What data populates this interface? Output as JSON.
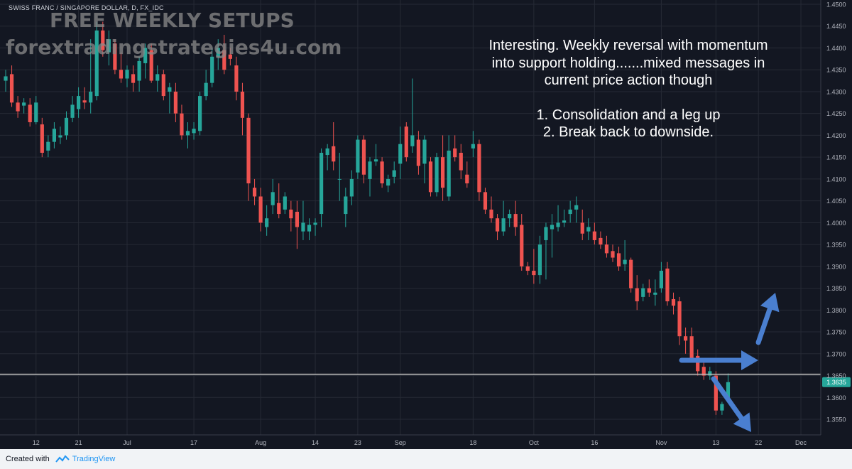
{
  "symbol_label": "SWISS FRANC / SINGAPORE DOLLAR, D, FX_IDC",
  "watermark": {
    "line1": "FREE WEEKLY SETUPS",
    "line2": "forextradingstrategies4u.com"
  },
  "annotation": {
    "paragraph": [
      "Interesting.  Weekly reversal with momentum",
      "into support holding.......mixed messages in",
      "current price action though"
    ],
    "items": [
      "1.  Consolidation and a leg up",
      "2.  Break back to downside."
    ]
  },
  "footer": {
    "created_with": "Created with",
    "brand": "TradingView"
  },
  "colors": {
    "background": "#131722",
    "up": "#26a69a",
    "down": "#ef5350",
    "grid": "#262a35",
    "axis_text": "#b2b5be",
    "support": "#b8b8b8",
    "arrow": "#4a7fd0",
    "price_tag": "#26a69a"
  },
  "chart_data": {
    "type": "candlestick",
    "price_range": [
      1.3525,
      1.4525
    ],
    "y_ticks": [
      "1.4500",
      "1.4450",
      "1.4400",
      "1.4350",
      "1.4300",
      "1.4250",
      "1.4200",
      "1.4150",
      "1.4100",
      "1.4050",
      "1.4000",
      "1.3950",
      "1.3900",
      "1.3850",
      "1.3800",
      "1.3750",
      "1.3700",
      "1.3650",
      "1.3600",
      "1.3550"
    ],
    "x_ticks": [
      {
        "label": "12",
        "bar": 5
      },
      {
        "label": "21",
        "bar": 12
      },
      {
        "label": "Jul",
        "bar": 20
      },
      {
        "label": "17",
        "bar": 31
      },
      {
        "label": "Aug",
        "bar": 42
      },
      {
        "label": "14",
        "bar": 51
      },
      {
        "label": "23",
        "bar": 58
      },
      {
        "label": "Sep",
        "bar": 65
      },
      {
        "label": "18",
        "bar": 77
      },
      {
        "label": "Oct",
        "bar": 87
      },
      {
        "label": "16",
        "bar": 97
      },
      {
        "label": "Nov",
        "bar": 108
      },
      {
        "label": "13",
        "bar": 117
      },
      {
        "label": "22",
        "bar": 124
      },
      {
        "label": "Dec",
        "bar": 131
      }
    ],
    "support_level": 1.3653,
    "last_price": "1.3635",
    "candles": [
      {
        "o": 1.4325,
        "h": 1.435,
        "l": 1.43,
        "c": 1.4335
      },
      {
        "o": 1.434,
        "h": 1.436,
        "l": 1.4265,
        "c": 1.4275
      },
      {
        "o": 1.4275,
        "h": 1.429,
        "l": 1.424,
        "c": 1.4255
      },
      {
        "o": 1.4268,
        "h": 1.4285,
        "l": 1.425,
        "c": 1.4275
      },
      {
        "o": 1.427,
        "h": 1.4285,
        "l": 1.422,
        "c": 1.423
      },
      {
        "o": 1.423,
        "h": 1.429,
        "l": 1.4225,
        "c": 1.4275
      },
      {
        "o": 1.4225,
        "h": 1.424,
        "l": 1.415,
        "c": 1.416
      },
      {
        "o": 1.4165,
        "h": 1.42,
        "l": 1.415,
        "c": 1.4185
      },
      {
        "o": 1.4185,
        "h": 1.423,
        "l": 1.417,
        "c": 1.4215
      },
      {
        "o": 1.4195,
        "h": 1.422,
        "l": 1.418,
        "c": 1.42
      },
      {
        "o": 1.42,
        "h": 1.4255,
        "l": 1.419,
        "c": 1.424
      },
      {
        "o": 1.424,
        "h": 1.429,
        "l": 1.423,
        "c": 1.427
      },
      {
        "o": 1.426,
        "h": 1.431,
        "l": 1.424,
        "c": 1.429
      },
      {
        "o": 1.428,
        "h": 1.431,
        "l": 1.426,
        "c": 1.4275
      },
      {
        "o": 1.4275,
        "h": 1.442,
        "l": 1.425,
        "c": 1.43
      },
      {
        "o": 1.429,
        "h": 1.446,
        "l": 1.428,
        "c": 1.444
      },
      {
        "o": 1.444,
        "h": 1.446,
        "l": 1.438,
        "c": 1.4395
      },
      {
        "o": 1.439,
        "h": 1.444,
        "l": 1.436,
        "c": 1.442
      },
      {
        "o": 1.441,
        "h": 1.442,
        "l": 1.434,
        "c": 1.435
      },
      {
        "o": 1.435,
        "h": 1.439,
        "l": 1.432,
        "c": 1.433
      },
      {
        "o": 1.433,
        "h": 1.436,
        "l": 1.431,
        "c": 1.435
      },
      {
        "o": 1.434,
        "h": 1.436,
        "l": 1.43,
        "c": 1.432
      },
      {
        "o": 1.4325,
        "h": 1.438,
        "l": 1.43,
        "c": 1.437
      },
      {
        "o": 1.4365,
        "h": 1.441,
        "l": 1.433,
        "c": 1.44
      },
      {
        "o": 1.4395,
        "h": 1.441,
        "l": 1.432,
        "c": 1.4325
      },
      {
        "o": 1.4325,
        "h": 1.436,
        "l": 1.43,
        "c": 1.434
      },
      {
        "o": 1.434,
        "h": 1.435,
        "l": 1.428,
        "c": 1.429
      },
      {
        "o": 1.43,
        "h": 1.432,
        "l": 1.425,
        "c": 1.431
      },
      {
        "o": 1.43,
        "h": 1.432,
        "l": 1.423,
        "c": 1.425
      },
      {
        "o": 1.425,
        "h": 1.427,
        "l": 1.419,
        "c": 1.42
      },
      {
        "o": 1.42,
        "h": 1.423,
        "l": 1.417,
        "c": 1.421
      },
      {
        "o": 1.4205,
        "h": 1.423,
        "l": 1.419,
        "c": 1.4215
      },
      {
        "o": 1.421,
        "h": 1.43,
        "l": 1.42,
        "c": 1.429
      },
      {
        "o": 1.429,
        "h": 1.435,
        "l": 1.428,
        "c": 1.432
      },
      {
        "o": 1.432,
        "h": 1.44,
        "l": 1.431,
        "c": 1.438
      },
      {
        "o": 1.438,
        "h": 1.442,
        "l": 1.435,
        "c": 1.44
      },
      {
        "o": 1.4395,
        "h": 1.443,
        "l": 1.434,
        "c": 1.435
      },
      {
        "o": 1.4385,
        "h": 1.44,
        "l": 1.436,
        "c": 1.4375
      },
      {
        "o": 1.436,
        "h": 1.438,
        "l": 1.428,
        "c": 1.43
      },
      {
        "o": 1.43,
        "h": 1.432,
        "l": 1.42,
        "c": 1.424
      },
      {
        "o": 1.424,
        "h": 1.425,
        "l": 1.405,
        "c": 1.409
      },
      {
        "o": 1.408,
        "h": 1.41,
        "l": 1.404,
        "c": 1.406
      },
      {
        "o": 1.406,
        "h": 1.408,
        "l": 1.398,
        "c": 1.4
      },
      {
        "o": 1.399,
        "h": 1.404,
        "l": 1.397,
        "c": 1.401
      },
      {
        "o": 1.404,
        "h": 1.41,
        "l": 1.402,
        "c": 1.407
      },
      {
        "o": 1.4045,
        "h": 1.409,
        "l": 1.401,
        "c": 1.402
      },
      {
        "o": 1.403,
        "h": 1.407,
        "l": 1.402,
        "c": 1.406
      },
      {
        "o": 1.403,
        "h": 1.405,
        "l": 1.398,
        "c": 1.401
      },
      {
        "o": 1.4025,
        "h": 1.405,
        "l": 1.394,
        "c": 1.399
      },
      {
        "o": 1.398,
        "h": 1.405,
        "l": 1.396,
        "c": 1.4
      },
      {
        "o": 1.398,
        "h": 1.401,
        "l": 1.396,
        "c": 1.3995
      },
      {
        "o": 1.3995,
        "h": 1.401,
        "l": 1.397,
        "c": 1.4
      },
      {
        "o": 1.402,
        "h": 1.417,
        "l": 1.399,
        "c": 1.416
      },
      {
        "o": 1.4155,
        "h": 1.418,
        "l": 1.412,
        "c": 1.417
      },
      {
        "o": 1.4175,
        "h": 1.423,
        "l": 1.412,
        "c": 1.414
      },
      {
        "o": 1.41,
        "h": 1.416,
        "l": 1.405,
        "c": 1.41
      },
      {
        "o": 1.402,
        "h": 1.408,
        "l": 1.399,
        "c": 1.406
      },
      {
        "o": 1.406,
        "h": 1.412,
        "l": 1.404,
        "c": 1.41
      },
      {
        "o": 1.4115,
        "h": 1.42,
        "l": 1.41,
        "c": 1.419
      },
      {
        "o": 1.419,
        "h": 1.42,
        "l": 1.409,
        "c": 1.411
      },
      {
        "o": 1.41,
        "h": 1.415,
        "l": 1.406,
        "c": 1.414
      },
      {
        "o": 1.414,
        "h": 1.418,
        "l": 1.413,
        "c": 1.4145
      },
      {
        "o": 1.414,
        "h": 1.415,
        "l": 1.408,
        "c": 1.409
      },
      {
        "o": 1.4085,
        "h": 1.411,
        "l": 1.407,
        "c": 1.41
      },
      {
        "o": 1.4105,
        "h": 1.414,
        "l": 1.409,
        "c": 1.412
      },
      {
        "o": 1.4135,
        "h": 1.422,
        "l": 1.41,
        "c": 1.418
      },
      {
        "o": 1.422,
        "h": 1.423,
        "l": 1.414,
        "c": 1.415
      },
      {
        "o": 1.4175,
        "h": 1.433,
        "l": 1.416,
        "c": 1.42
      },
      {
        "o": 1.419,
        "h": 1.421,
        "l": 1.411,
        "c": 1.413
      },
      {
        "o": 1.4135,
        "h": 1.42,
        "l": 1.409,
        "c": 1.419
      },
      {
        "o": 1.414,
        "h": 1.415,
        "l": 1.406,
        "c": 1.407
      },
      {
        "o": 1.407,
        "h": 1.416,
        "l": 1.406,
        "c": 1.415
      },
      {
        "o": 1.415,
        "h": 1.42,
        "l": 1.405,
        "c": 1.408
      },
      {
        "o": 1.406,
        "h": 1.42,
        "l": 1.405,
        "c": 1.4165
      },
      {
        "o": 1.417,
        "h": 1.42,
        "l": 1.414,
        "c": 1.415
      },
      {
        "o": 1.416,
        "h": 1.418,
        "l": 1.41,
        "c": 1.412
      },
      {
        "o": 1.411,
        "h": 1.414,
        "l": 1.408,
        "c": 1.409
      },
      {
        "o": 1.417,
        "h": 1.421,
        "l": 1.415,
        "c": 1.418
      },
      {
        "o": 1.418,
        "h": 1.419,
        "l": 1.405,
        "c": 1.407
      },
      {
        "o": 1.407,
        "h": 1.408,
        "l": 1.402,
        "c": 1.403
      },
      {
        "o": 1.403,
        "h": 1.406,
        "l": 1.4,
        "c": 1.401
      },
      {
        "o": 1.401,
        "h": 1.402,
        "l": 1.396,
        "c": 1.398
      },
      {
        "o": 1.398,
        "h": 1.405,
        "l": 1.397,
        "c": 1.401
      },
      {
        "o": 1.401,
        "h": 1.403,
        "l": 1.399,
        "c": 1.402
      },
      {
        "o": 1.402,
        "h": 1.405,
        "l": 1.397,
        "c": 1.399
      },
      {
        "o": 1.3995,
        "h": 1.402,
        "l": 1.389,
        "c": 1.39
      },
      {
        "o": 1.39,
        "h": 1.391,
        "l": 1.388,
        "c": 1.389
      },
      {
        "o": 1.389,
        "h": 1.394,
        "l": 1.386,
        "c": 1.388
      },
      {
        "o": 1.388,
        "h": 1.397,
        "l": 1.386,
        "c": 1.395
      },
      {
        "o": 1.396,
        "h": 1.4,
        "l": 1.387,
        "c": 1.399
      },
      {
        "o": 1.3985,
        "h": 1.402,
        "l": 1.392,
        "c": 1.3995
      },
      {
        "o": 1.399,
        "h": 1.404,
        "l": 1.398,
        "c": 1.4
      },
      {
        "o": 1.4,
        "h": 1.403,
        "l": 1.399,
        "c": 1.4005
      },
      {
        "o": 1.402,
        "h": 1.405,
        "l": 1.4,
        "c": 1.403
      },
      {
        "o": 1.403,
        "h": 1.406,
        "l": 1.4,
        "c": 1.404
      },
      {
        "o": 1.4,
        "h": 1.403,
        "l": 1.396,
        "c": 1.3975
      },
      {
        "o": 1.398,
        "h": 1.401,
        "l": 1.396,
        "c": 1.399
      },
      {
        "o": 1.398,
        "h": 1.4,
        "l": 1.395,
        "c": 1.396
      },
      {
        "o": 1.3965,
        "h": 1.398,
        "l": 1.394,
        "c": 1.395
      },
      {
        "o": 1.395,
        "h": 1.397,
        "l": 1.392,
        "c": 1.393
      },
      {
        "o": 1.3935,
        "h": 1.395,
        "l": 1.391,
        "c": 1.392
      },
      {
        "o": 1.393,
        "h": 1.3945,
        "l": 1.389,
        "c": 1.39
      },
      {
        "o": 1.3905,
        "h": 1.396,
        "l": 1.389,
        "c": 1.3915
      },
      {
        "o": 1.3915,
        "h": 1.392,
        "l": 1.384,
        "c": 1.385
      },
      {
        "o": 1.385,
        "h": 1.388,
        "l": 1.38,
        "c": 1.382
      },
      {
        "o": 1.383,
        "h": 1.386,
        "l": 1.382,
        "c": 1.385
      },
      {
        "o": 1.385,
        "h": 1.387,
        "l": 1.383,
        "c": 1.384
      },
      {
        "o": 1.3835,
        "h": 1.387,
        "l": 1.381,
        "c": 1.384
      },
      {
        "o": 1.385,
        "h": 1.391,
        "l": 1.384,
        "c": 1.389
      },
      {
        "o": 1.3895,
        "h": 1.391,
        "l": 1.381,
        "c": 1.382
      },
      {
        "o": 1.3825,
        "h": 1.384,
        "l": 1.379,
        "c": 1.381
      },
      {
        "o": 1.382,
        "h": 1.383,
        "l": 1.372,
        "c": 1.374
      },
      {
        "o": 1.374,
        "h": 1.376,
        "l": 1.37,
        "c": 1.373
      },
      {
        "o": 1.374,
        "h": 1.376,
        "l": 1.368,
        "c": 1.369
      },
      {
        "o": 1.3695,
        "h": 1.371,
        "l": 1.365,
        "c": 1.366
      },
      {
        "o": 1.367,
        "h": 1.369,
        "l": 1.364,
        "c": 1.365
      },
      {
        "o": 1.365,
        "h": 1.367,
        "l": 1.364,
        "c": 1.366
      },
      {
        "o": 1.365,
        "h": 1.366,
        "l": 1.356,
        "c": 1.357
      },
      {
        "o": 1.357,
        "h": 1.359,
        "l": 1.356,
        "c": 1.3585
      },
      {
        "o": 1.36,
        "h": 1.3655,
        "l": 1.359,
        "c": 1.3635
      }
    ]
  }
}
